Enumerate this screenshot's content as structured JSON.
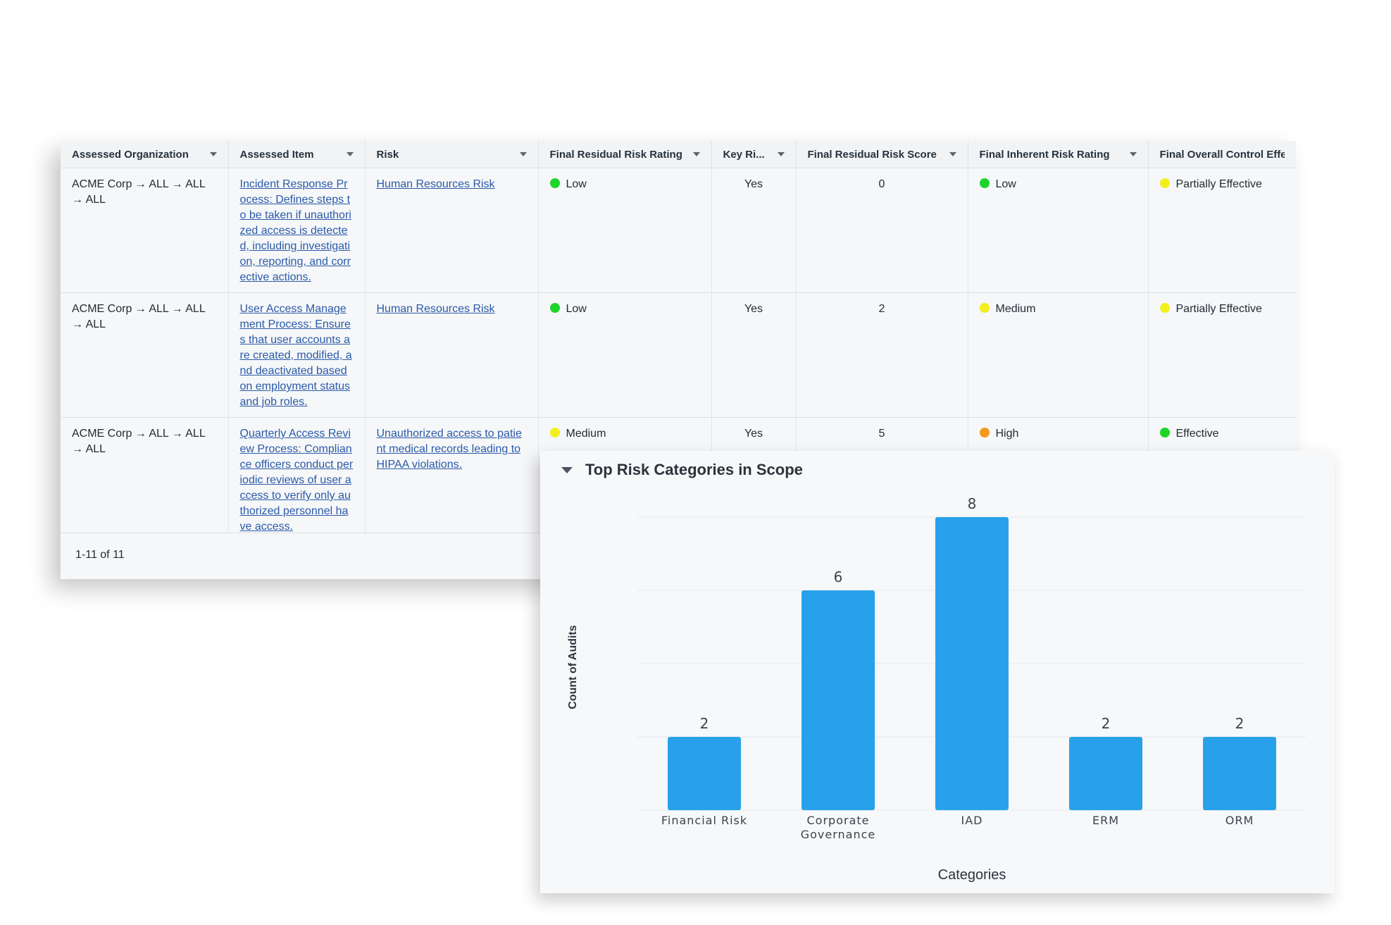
{
  "grid": {
    "columns": [
      {
        "label": "Assessed Organization"
      },
      {
        "label": "Assessed Item"
      },
      {
        "label": "Risk"
      },
      {
        "label": "Final Residual Risk Rating"
      },
      {
        "label": "Key Ri..."
      },
      {
        "label": "Final Residual Risk Score"
      },
      {
        "label": "Final Inherent Risk Rating"
      },
      {
        "label": "Final Overall Control Effectiv"
      }
    ],
    "rows": [
      {
        "organization": "ACME Corp → ALL → ALL → ALL",
        "item": "Incident Response Process: Defines steps to be taken if unauthorized access is detected, including investigation, reporting, and corrective actions.",
        "risk": "Human Resources Risk",
        "residual_rating": "Low",
        "residual_color": "#1ed428",
        "key_risk": "Yes",
        "residual_score": "0",
        "inherent_rating": "Low",
        "inherent_color": "#1ed428",
        "control_effectiveness": "Partially Effective",
        "control_color": "#f2ef1d"
      },
      {
        "organization": "ACME Corp → ALL → ALL → ALL",
        "item": "User Access Management Process: Ensures that user accounts are created, modified, and deactivated based on employment status and job roles.",
        "risk": "Human Resources Risk",
        "residual_rating": "Low",
        "residual_color": "#1ed428",
        "key_risk": "Yes",
        "residual_score": "2",
        "inherent_rating": "Medium",
        "inherent_color": "#f2ef1d",
        "control_effectiveness": "Partially Effective",
        "control_color": "#f2ef1d"
      },
      {
        "organization": "ACME Corp → ALL → ALL → ALL",
        "item": "Quarterly Access Review Process: Compliance officers conduct periodic reviews of user access to verify only authorized personnel have access.",
        "risk": "Unauthorized access to patient medical records leading to HIPAA violations.",
        "residual_rating": "Medium",
        "residual_color": "#f2ef1d",
        "key_risk": "Yes",
        "residual_score": "5",
        "inherent_rating": "High",
        "inherent_color": "#f39a1c",
        "control_effectiveness": "Effective",
        "control_color": "#1ed428"
      }
    ],
    "pagination": "1-11 of 11"
  },
  "chart_panel": {
    "title": "Top Risk Categories in Scope"
  },
  "chart_data": {
    "type": "bar",
    "title": "Top Risk Categories in Scope",
    "categories": [
      "Financial Risk",
      "Corporate Governance",
      "IAD",
      "ERM",
      "ORM"
    ],
    "category_lines": [
      [
        "Financial Risk"
      ],
      [
        "Corporate",
        "Governance"
      ],
      [
        "IAD"
      ],
      [
        "ERM"
      ],
      [
        "ORM"
      ]
    ],
    "values": [
      2,
      6,
      8,
      2,
      2
    ],
    "xlabel": "Categories",
    "ylabel": "Count of Audits",
    "ylim": [
      0,
      8
    ],
    "grid": true,
    "bar_color": "#27a2ea"
  }
}
